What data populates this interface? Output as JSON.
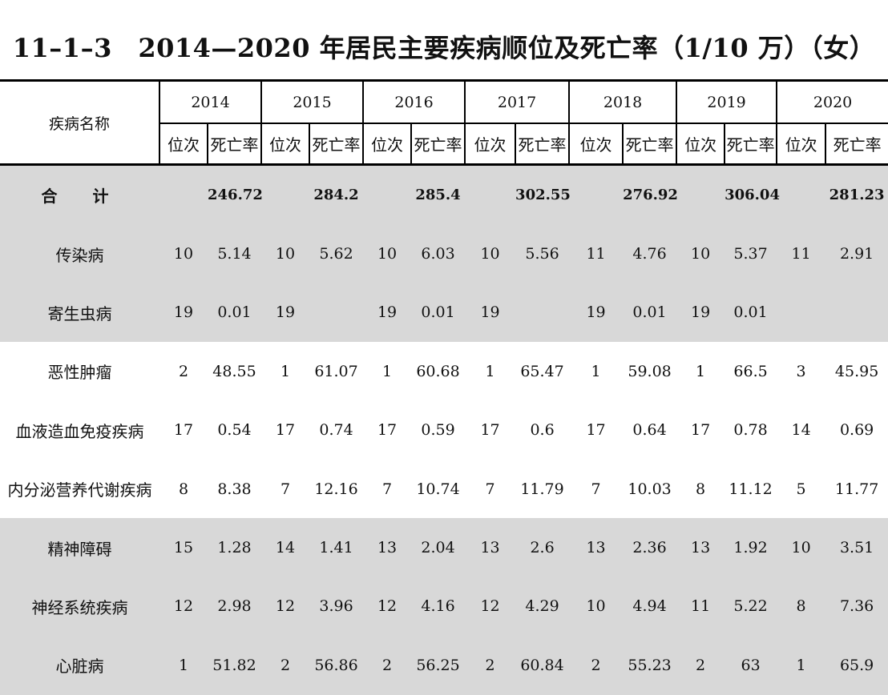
{
  "title": "11–1–3　2014—2020 年居民主要疾病顺位及死亡率（1/10 万）（女）",
  "table": {
    "name_header": "疾病名称",
    "years": [
      "2014",
      "2015",
      "2016",
      "2017",
      "2018",
      "2019",
      "2020"
    ],
    "rank_label": "位次",
    "rate_label": "死亡率",
    "rows": [
      {
        "name": "合　计",
        "shaded": true,
        "total": true,
        "cells": [
          [
            "",
            "246.72"
          ],
          [
            "",
            "284.2"
          ],
          [
            "",
            "285.4"
          ],
          [
            "",
            "302.55"
          ],
          [
            "",
            "276.92"
          ],
          [
            "",
            "306.04"
          ],
          [
            "",
            "281.23"
          ]
        ]
      },
      {
        "name": "传染病",
        "shaded": true,
        "cells": [
          [
            "10",
            "5.14"
          ],
          [
            "10",
            "5.62"
          ],
          [
            "10",
            "6.03"
          ],
          [
            "10",
            "5.56"
          ],
          [
            "11",
            "4.76"
          ],
          [
            "10",
            "5.37"
          ],
          [
            "11",
            "2.91"
          ]
        ]
      },
      {
        "name": "寄生虫病",
        "shaded": true,
        "cells": [
          [
            "19",
            "0.01"
          ],
          [
            "19",
            ""
          ],
          [
            "19",
            "0.01"
          ],
          [
            "19",
            ""
          ],
          [
            "19",
            "0.01"
          ],
          [
            "19",
            "0.01"
          ],
          [
            "",
            ""
          ]
        ]
      },
      {
        "name": "恶性肿瘤",
        "shaded": false,
        "cells": [
          [
            "2",
            "48.55"
          ],
          [
            "1",
            "61.07"
          ],
          [
            "1",
            "60.68"
          ],
          [
            "1",
            "65.47"
          ],
          [
            "1",
            "59.08"
          ],
          [
            "1",
            "66.5"
          ],
          [
            "3",
            "45.95"
          ]
        ]
      },
      {
        "name": "血液造血免疫疾病",
        "shaded": false,
        "cells": [
          [
            "17",
            "0.54"
          ],
          [
            "17",
            "0.74"
          ],
          [
            "17",
            "0.59"
          ],
          [
            "17",
            "0.6"
          ],
          [
            "17",
            "0.64"
          ],
          [
            "17",
            "0.78"
          ],
          [
            "14",
            "0.69"
          ]
        ]
      },
      {
        "name": "内分泌营养代谢疾病",
        "shaded": false,
        "cells": [
          [
            "8",
            "8.38"
          ],
          [
            "7",
            "12.16"
          ],
          [
            "7",
            "10.74"
          ],
          [
            "7",
            "11.79"
          ],
          [
            "7",
            "10.03"
          ],
          [
            "8",
            "11.12"
          ],
          [
            "5",
            "11.77"
          ]
        ]
      },
      {
        "name": "精神障碍",
        "shaded": true,
        "cells": [
          [
            "15",
            "1.28"
          ],
          [
            "14",
            "1.41"
          ],
          [
            "13",
            "2.04"
          ],
          [
            "13",
            "2.6"
          ],
          [
            "13",
            "2.36"
          ],
          [
            "13",
            "1.92"
          ],
          [
            "10",
            "3.51"
          ]
        ]
      },
      {
        "name": "神经系统疾病",
        "shaded": true,
        "cells": [
          [
            "12",
            "2.98"
          ],
          [
            "12",
            "3.96"
          ],
          [
            "12",
            "4.16"
          ],
          [
            "12",
            "4.29"
          ],
          [
            "10",
            "4.94"
          ],
          [
            "11",
            "5.22"
          ],
          [
            "8",
            "7.36"
          ]
        ]
      },
      {
        "name": "心脏病",
        "shaded": true,
        "cells": [
          [
            "1",
            "51.82"
          ],
          [
            "2",
            "56.86"
          ],
          [
            "2",
            "56.25"
          ],
          [
            "2",
            "60.84"
          ],
          [
            "2",
            "55.23"
          ],
          [
            "2",
            "63"
          ],
          [
            "1",
            "65.9"
          ]
        ]
      }
    ]
  }
}
